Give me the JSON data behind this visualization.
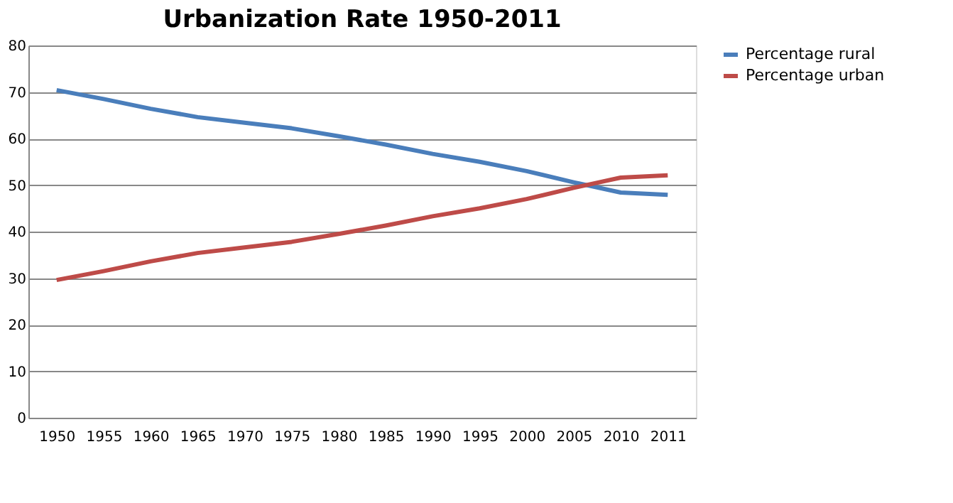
{
  "chart_data": {
    "type": "line",
    "title": "Urbanization Rate 1950-2011",
    "categories": [
      "1950",
      "1955",
      "1960",
      "1965",
      "1970",
      "1975",
      "1980",
      "1985",
      "1990",
      "1995",
      "2000",
      "2005",
      "2010",
      "2011"
    ],
    "series": [
      {
        "name": "Percentage rural",
        "color": "#4a7ebb",
        "values": [
          70.4,
          68.5,
          66.4,
          64.6,
          63.4,
          62.2,
          60.5,
          58.7,
          56.7,
          55.0,
          53.0,
          50.6,
          48.4,
          47.9
        ]
      },
      {
        "name": "Percentage urban",
        "color": "#be4b48",
        "values": [
          29.6,
          31.5,
          33.6,
          35.4,
          36.6,
          37.8,
          39.5,
          41.3,
          43.3,
          45.0,
          47.0,
          49.4,
          51.6,
          52.1
        ]
      }
    ],
    "ylim": [
      0,
      80
    ],
    "yticks": [
      0,
      10,
      20,
      30,
      40,
      50,
      60,
      70,
      80
    ],
    "grid": "y",
    "legend": "right",
    "marker": "none",
    "line_style": "solid"
  }
}
